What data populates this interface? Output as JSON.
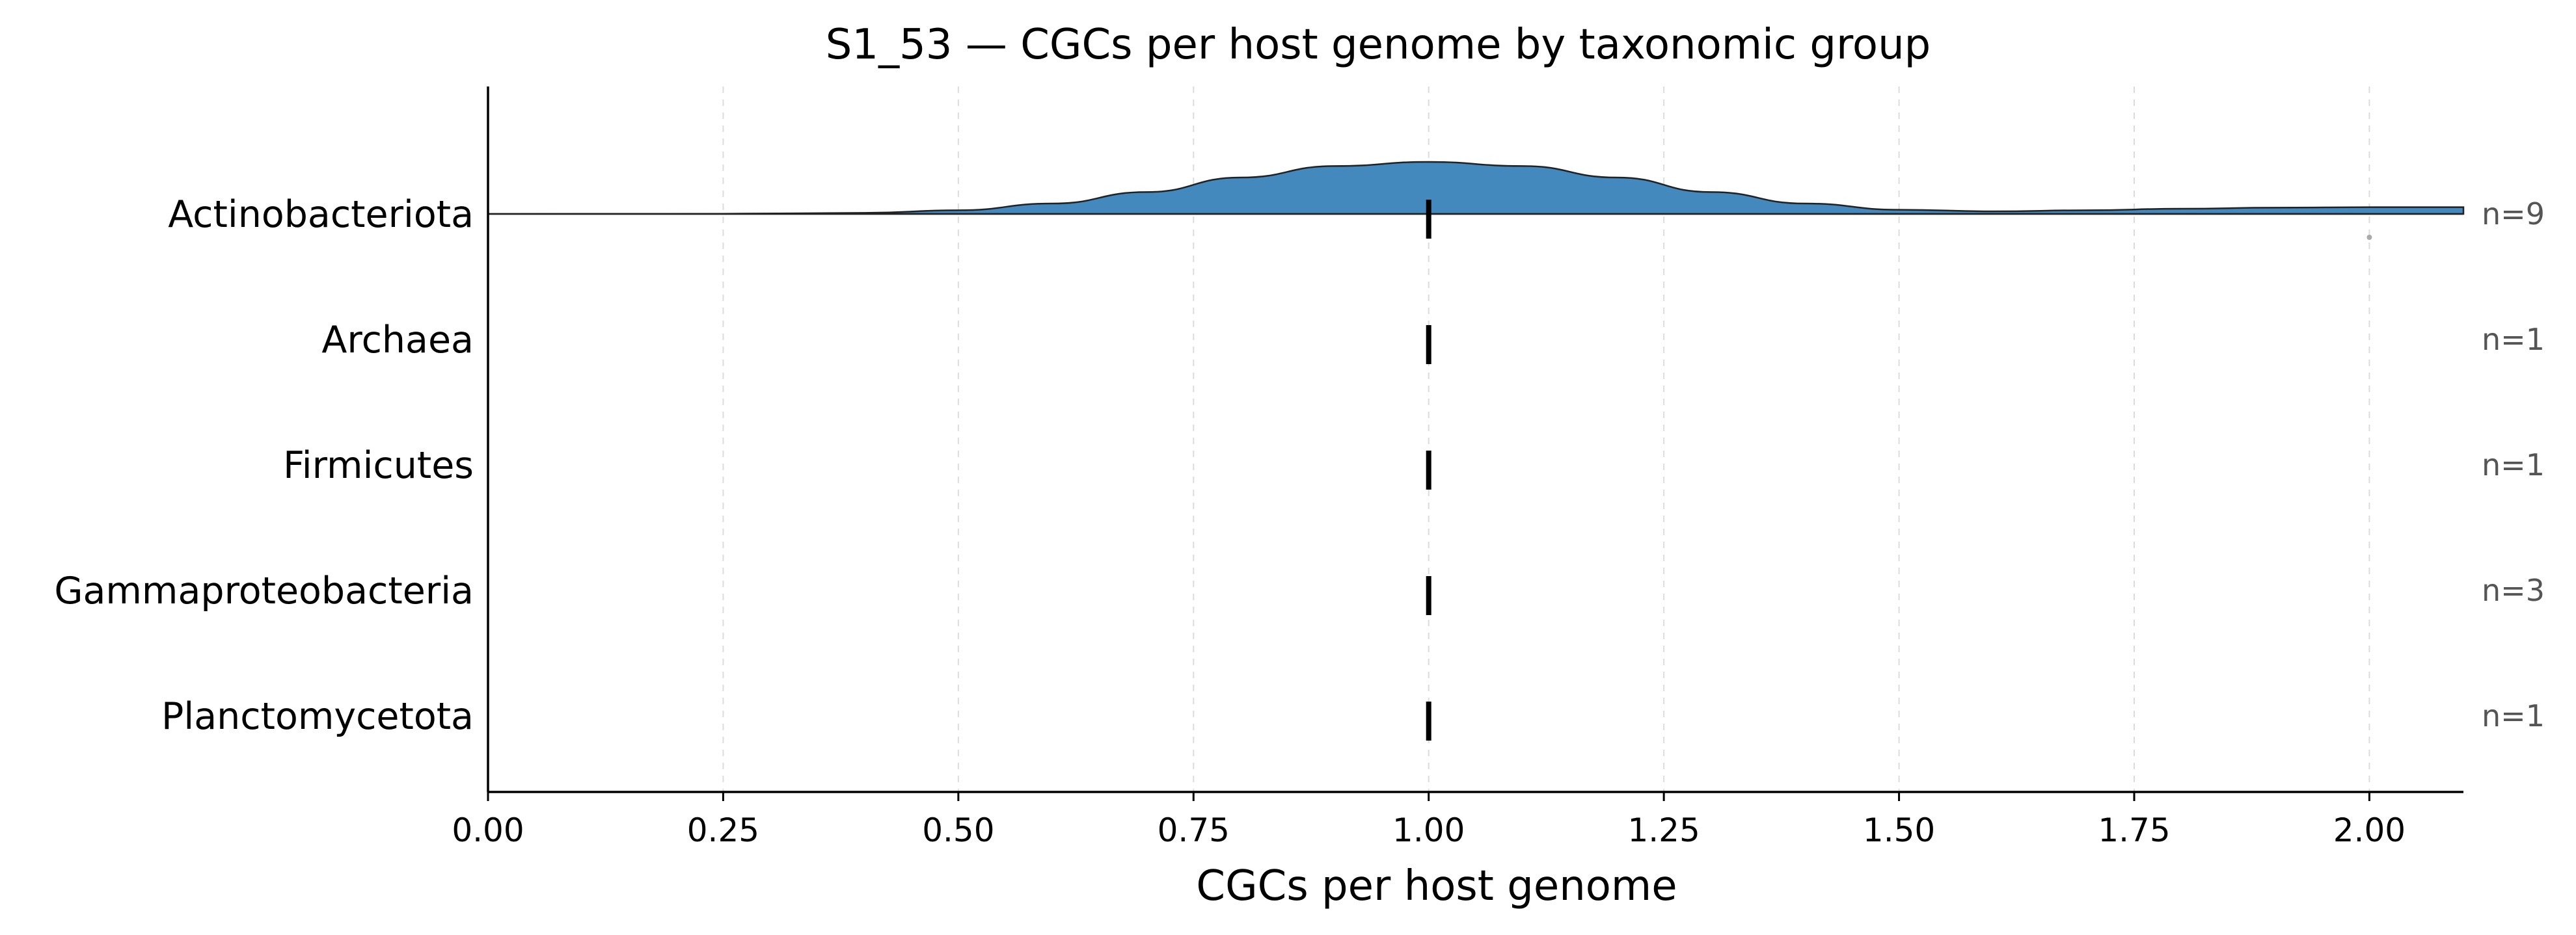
{
  "chart_data": {
    "type": "ridgeline",
    "title": "S1_53 — CGCs per host genome by taxonomic group",
    "xlabel": "CGCs per host genome",
    "ylabel": "",
    "xlim": [
      0,
      2.1
    ],
    "x_ticks": [
      0.0,
      0.25,
      0.5,
      0.75,
      1.0,
      1.25,
      1.5,
      1.75,
      2.0
    ],
    "x_tick_labels": [
      "0.00",
      "0.25",
      "0.50",
      "0.75",
      "1.00",
      "1.25",
      "1.50",
      "1.75",
      "2.00"
    ],
    "grid": "vertical, dashed",
    "fill_color": "#4489be",
    "groups": [
      {
        "name": "Actinobacteriota",
        "count_label": "n=9",
        "median": 1.0,
        "values": [
          0.75,
          1.0,
          1.0,
          1.0,
          1.0,
          1.0,
          1.0,
          1.25,
          2.0
        ],
        "density": {
          "x": [
            0.0,
            0.25,
            0.4,
            0.5,
            0.6,
            0.7,
            0.8,
            0.9,
            1.0,
            1.1,
            1.2,
            1.3,
            1.4,
            1.5,
            1.6,
            1.7,
            1.8,
            1.9,
            2.0,
            2.1
          ],
          "y": [
            0.0,
            0.003,
            0.02,
            0.07,
            0.2,
            0.42,
            0.7,
            0.92,
            1.0,
            0.92,
            0.7,
            0.42,
            0.2,
            0.08,
            0.05,
            0.07,
            0.1,
            0.12,
            0.13,
            0.13
          ]
        }
      },
      {
        "name": "Archaea",
        "count_label": "n=1",
        "median": 1.0,
        "values": [
          1.0
        ]
      },
      {
        "name": "Firmicutes",
        "count_label": "n=1",
        "median": 1.0,
        "values": [
          1.0
        ]
      },
      {
        "name": "Gammaproteobacteria",
        "count_label": "n=3",
        "median": 1.0,
        "values": [
          1.0,
          1.0,
          1.0
        ]
      },
      {
        "name": "Planctomycetota",
        "count_label": "n=1",
        "median": 1.0,
        "values": [
          1.0
        ]
      }
    ]
  }
}
